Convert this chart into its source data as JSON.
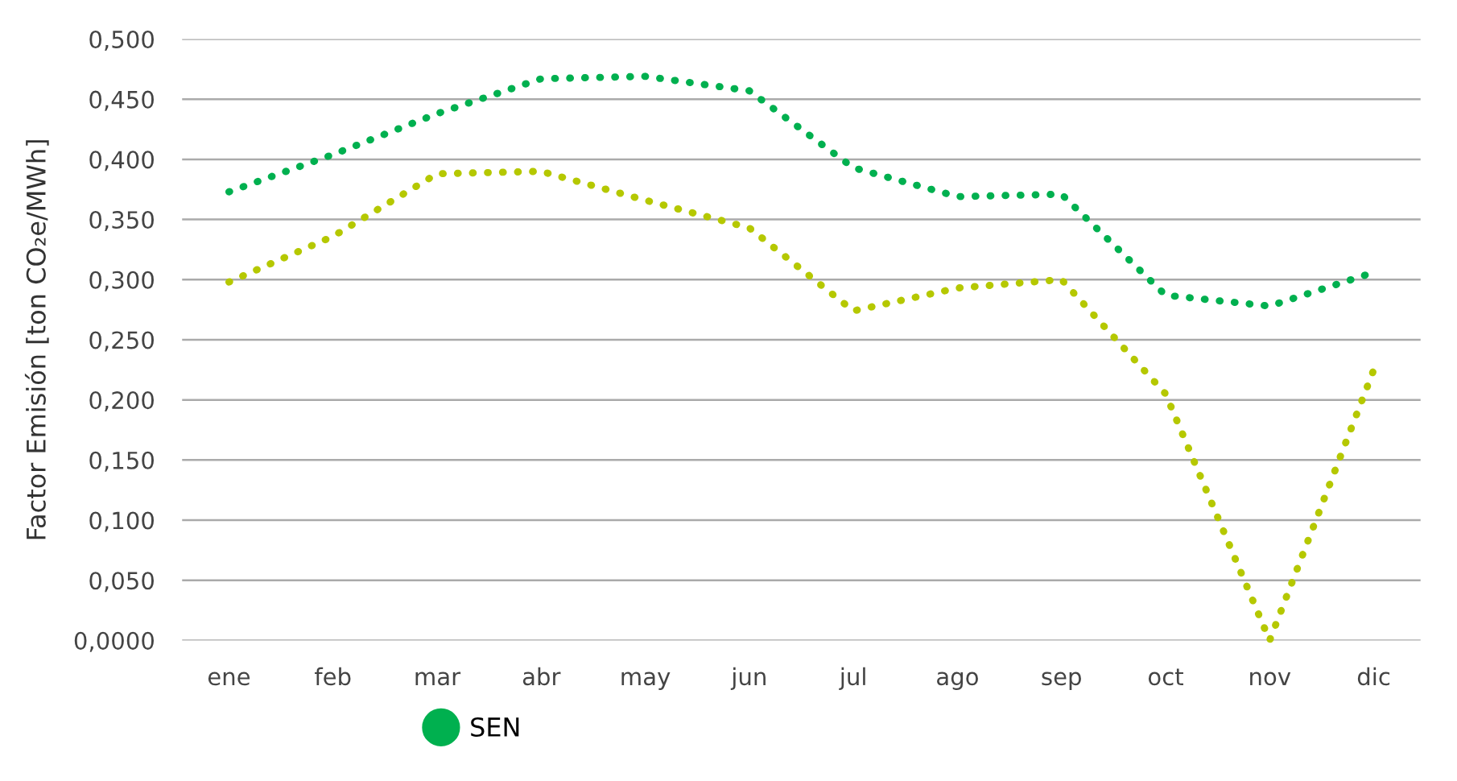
{
  "chart_data": {
    "type": "line",
    "ylabel": "Factor Emisión [ton CO₂e/MWh]",
    "categories": [
      "ene",
      "feb",
      "mar",
      "abr",
      "may",
      "jun",
      "jul",
      "ago",
      "sep",
      "oct",
      "nov",
      "dic"
    ],
    "series": [
      {
        "color": "#b5c800",
        "values": [
          0.298,
          0.336,
          0.388,
          0.39,
          0.366,
          0.343,
          0.274,
          0.293,
          0.3,
          0.205,
          0.0,
          0.225
        ]
      },
      {
        "name": "SEN",
        "color": "#00b04f",
        "values": [
          0.373,
          0.404,
          0.438,
          0.467,
          0.469,
          0.457,
          0.393,
          0.369,
          0.371,
          0.287,
          0.278,
          0.306
        ]
      }
    ],
    "ylim": [
      0,
      0.5
    ],
    "yticks": [
      {
        "value": 0,
        "label": "0,0000"
      },
      {
        "value": 0.05,
        "label": "0,050"
      },
      {
        "value": 0.1,
        "label": "0,100"
      },
      {
        "value": 0.15,
        "label": "0,150"
      },
      {
        "value": 0.2,
        "label": "0,200"
      },
      {
        "value": 0.25,
        "label": "0,250"
      },
      {
        "value": 0.3,
        "label": "0,300"
      },
      {
        "value": 0.35,
        "label": "0,350"
      },
      {
        "value": 0.4,
        "label": "0,400"
      },
      {
        "value": 0.45,
        "label": "0,450"
      },
      {
        "value": 0.5,
        "label": "0,500"
      }
    ],
    "grid": "y",
    "legend": "bottom",
    "line_style": "dotted",
    "marker": "none"
  }
}
